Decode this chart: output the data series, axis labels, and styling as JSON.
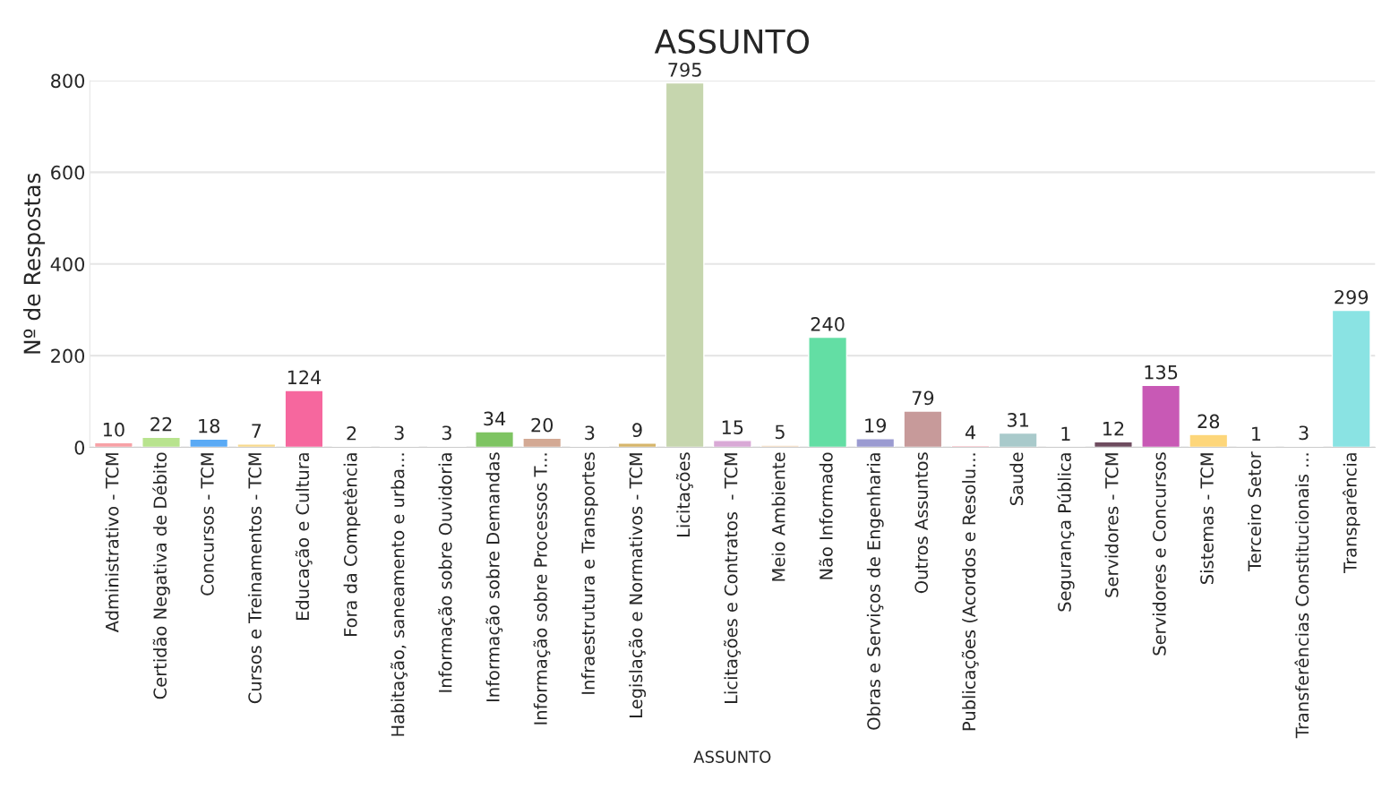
{
  "chart_data": {
    "type": "bar",
    "title": "ASSUNTO",
    "xlabel": "ASSUNTO",
    "ylabel": "Nº de Respostas",
    "categories": [
      "Administrativo - TCM",
      "Certidão Negativa de Débito",
      "Concursos - TCM",
      "Cursos e Treinamentos - TCM",
      "Educação e Cultura",
      "Fora da Competência",
      "Habitação, saneamento e urba...",
      "Informação sobre Ouvidoria",
      "Informação sobre Demandas",
      "Informação sobre Processos T...",
      "Infraestrutura e Transportes",
      "Legislação e Normativos - TCM",
      "Licitações",
      "Licitações e Contratos  - TCM",
      "Meio Ambiente",
      "Não Informado",
      "Obras e Serviços de Engenharia",
      "Outros Assuntos",
      "Publicações (Acordos e Resolu...",
      "Saude",
      "Segurança Pública",
      "Servidores - TCM",
      "Servidores e Concursos",
      "Sistemas - TCM",
      "Terceiro Setor",
      "Transferências Constitucionais ...",
      "Transparência"
    ],
    "values": [
      10,
      22,
      18,
      7,
      124,
      2,
      3,
      3,
      34,
      20,
      3,
      9,
      795,
      15,
      5,
      240,
      19,
      79,
      4,
      31,
      1,
      12,
      135,
      28,
      1,
      3,
      299
    ],
    "colors": [
      "#f7a1a6",
      "#b8e38e",
      "#5aaaf5",
      "#f7d98c",
      "#f6679e",
      "#f5c0a8",
      "#8fd3d9",
      "#d6d6d6",
      "#7ec462",
      "#d3a994",
      "#a9aee0",
      "#d6b56a",
      "#c6d6ae",
      "#d9a9d6",
      "#f3dcc0",
      "#63dea4",
      "#9b9bd1",
      "#c79a9a",
      "#f7a6b3",
      "#a9cacb",
      "#c5dde6",
      "#6e4c5f",
      "#c859b5",
      "#fdd67a",
      "#ede7c6",
      "#c4b7c7",
      "#8ae3e3"
    ],
    "ylim": [
      0,
      800
    ],
    "yticks": [
      0,
      200,
      400,
      600,
      800
    ],
    "grid": "y",
    "data_labels": true
  }
}
